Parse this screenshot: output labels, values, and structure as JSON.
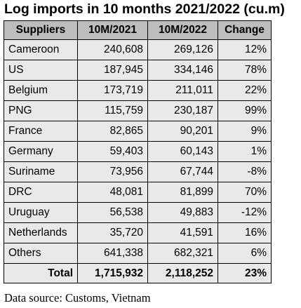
{
  "title": "Log  imports in 10 months 2021/2022 (cu.m)",
  "headers": [
    "Suppliers",
    "10M/2021",
    "10M/2022",
    "Change"
  ],
  "rows": [
    {
      "supplier": "Cameroon",
      "y2021": "240,608",
      "y2022": "269,126",
      "change": "12%"
    },
    {
      "supplier": "US",
      "y2021": "187,945",
      "y2022": "334,146",
      "change": "78%"
    },
    {
      "supplier": "Belgium",
      "y2021": "173,719",
      "y2022": "211,011",
      "change": "22%"
    },
    {
      "supplier": "PNG",
      "y2021": "115,759",
      "y2022": "230,187",
      "change": "99%"
    },
    {
      "supplier": "France",
      "y2021": "82,865",
      "y2022": "90,201",
      "change": "9%"
    },
    {
      "supplier": "Germany",
      "y2021": "59,403",
      "y2022": "60,143",
      "change": "1%"
    },
    {
      "supplier": "Suriname",
      "y2021": "73,956",
      "y2022": "67,744",
      "change": "-8%"
    },
    {
      "supplier": "DRC",
      "y2021": "48,081",
      "y2022": "81,899",
      "change": "70%"
    },
    {
      "supplier": "Uruguay",
      "y2021": "56,538",
      "y2022": "49,883",
      "change": "-12%"
    },
    {
      "supplier": "Netherlands",
      "y2021": "35,720",
      "y2022": "41,591",
      "change": "16%"
    },
    {
      "supplier": "Others",
      "y2021": "641,338",
      "y2022": "682,321",
      "change": "6%"
    }
  ],
  "total": {
    "label": "Total",
    "y2021": "1,715,932",
    "y2022": "2,118,252",
    "change": "23%"
  },
  "source": "Data source: Customs, Vietnam"
}
